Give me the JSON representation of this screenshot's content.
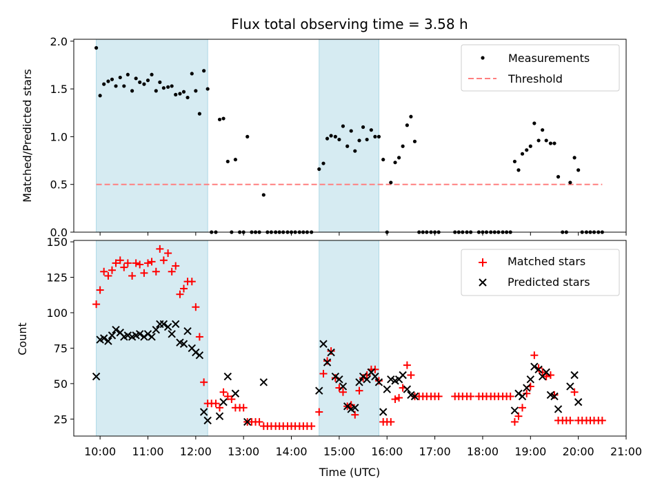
{
  "chart_data": {
    "title": "Flux total observing time = 3.58 h",
    "xlabel": "Time (UTC)",
    "x_unit": "hours (UTC)",
    "xlim": [
      9.45,
      21.0
    ],
    "x_ticks": [
      10,
      11,
      12,
      13,
      14,
      15,
      16,
      17,
      18,
      19,
      20,
      21
    ],
    "x_tick_labels": [
      "10:00",
      "11:00",
      "12:00",
      "13:00",
      "14:00",
      "15:00",
      "16:00",
      "17:00",
      "18:00",
      "19:00",
      "20:00",
      "21:00"
    ],
    "observing_windows": [
      [
        9.92,
        12.25
      ],
      [
        14.58,
        15.83
      ]
    ],
    "panels": [
      {
        "type": "scatter",
        "ylabel": "Matched/Predicted stars",
        "ylim": [
          0,
          2.02
        ],
        "y_ticks": [
          0.0,
          0.5,
          1.0,
          1.5,
          2.0
        ],
        "y_tick_labels": [
          "0.0",
          "0.5",
          "1.0",
          "1.5",
          "2.0"
        ],
        "legend": [
          "Measurements",
          "Threshold"
        ],
        "threshold": {
          "name": "Threshold",
          "y": 0.5,
          "x_range": [
            9.92,
            20.5
          ],
          "color": "#ff7f7f"
        },
        "series": [
          {
            "name": "Measurements",
            "color": "#000000",
            "x": [
              9.92,
              10.0,
              10.08,
              10.17,
              10.25,
              10.33,
              10.42,
              10.5,
              10.58,
              10.67,
              10.75,
              10.83,
              10.92,
              11.0,
              11.08,
              11.17,
              11.25,
              11.33,
              11.42,
              11.5,
              11.58,
              11.67,
              11.75,
              11.83,
              11.92,
              12.0,
              12.08,
              12.17,
              12.25,
              12.33,
              12.42,
              12.5,
              12.58,
              12.67,
              12.75,
              12.83,
              12.92,
              13.0,
              13.08,
              13.17,
              13.25,
              13.33,
              13.42,
              13.5,
              13.58,
              13.67,
              13.75,
              13.83,
              13.92,
              14.0,
              14.08,
              14.17,
              14.25,
              14.33,
              14.42,
              14.58,
              14.67,
              14.75,
              14.83,
              14.92,
              15.0,
              15.08,
              15.17,
              15.25,
              15.33,
              15.42,
              15.5,
              15.58,
              15.67,
              15.75,
              15.83,
              15.92,
              16.0,
              16.08,
              16.17,
              16.25,
              16.33,
              16.42,
              16.5,
              16.58,
              16.67,
              16.75,
              16.83,
              16.92,
              17.0,
              17.08,
              17.42,
              17.5,
              17.58,
              17.67,
              17.75,
              17.92,
              18.0,
              18.08,
              18.17,
              18.25,
              18.33,
              18.42,
              18.5,
              18.58,
              18.67,
              18.75,
              18.83,
              18.92,
              19.0,
              19.08,
              19.17,
              19.25,
              19.33,
              19.42,
              19.5,
              19.58,
              19.67,
              19.75,
              19.83,
              19.92,
              20.0,
              20.08,
              20.17,
              20.25,
              20.33,
              20.42,
              20.5
            ],
            "y": [
              1.93,
              1.43,
              1.55,
              1.58,
              1.6,
              1.53,
              1.62,
              1.53,
              1.65,
              1.48,
              1.61,
              1.57,
              1.55,
              1.59,
              1.65,
              1.48,
              1.57,
              1.51,
              1.52,
              1.53,
              1.44,
              1.45,
              1.47,
              1.41,
              1.66,
              1.48,
              1.24,
              1.69,
              1.5,
              0.0,
              0.0,
              1.18,
              1.19,
              0.74,
              0.0,
              0.76,
              0.0,
              0.0,
              1.0,
              0.0,
              0.0,
              0.0,
              0.39,
              0.0,
              0.0,
              0.0,
              0.0,
              0.0,
              0.0,
              0.0,
              0.0,
              0.0,
              0.0,
              0.0,
              0.0,
              0.66,
              0.72,
              0.98,
              1.01,
              1.0,
              0.97,
              1.11,
              0.9,
              1.06,
              0.85,
              0.96,
              1.1,
              0.97,
              1.07,
              1.0,
              1.0,
              0.76,
              0.0,
              0.52,
              0.73,
              0.78,
              0.9,
              1.12,
              1.21,
              0.95,
              0.0,
              0.0,
              0.0,
              0.0,
              0.0,
              0.0,
              0.0,
              0.0,
              0.0,
              0.0,
              0.0,
              0.0,
              0.0,
              0.0,
              0.0,
              0.0,
              0.0,
              0.0,
              0.0,
              0.0,
              0.74,
              0.65,
              0.82,
              0.86,
              0.9,
              1.14,
              0.96,
              1.07,
              0.96,
              0.93,
              0.93,
              0.58,
              0.0,
              0.0,
              0.52,
              0.78,
              0.65,
              0.0,
              0.0,
              0.0,
              0.0,
              0.0,
              0.0
            ]
          }
        ]
      },
      {
        "type": "scatter",
        "ylabel": "Count",
        "ylim": [
          13,
          151
        ],
        "y_ticks": [
          25,
          50,
          75,
          100,
          125,
          150
        ],
        "y_tick_labels": [
          "25",
          "50",
          "75",
          "100",
          "125",
          "150"
        ],
        "legend": [
          "Matched stars",
          "Predicted stars"
        ],
        "series": [
          {
            "name": "Matched stars",
            "marker": "+",
            "color": "#ff0000",
            "x": [
              9.92,
              10.0,
              10.08,
              10.17,
              10.25,
              10.33,
              10.42,
              10.5,
              10.58,
              10.67,
              10.75,
              10.83,
              10.92,
              11.0,
              11.08,
              11.17,
              11.25,
              11.33,
              11.42,
              11.5,
              11.58,
              11.67,
              11.75,
              11.83,
              11.92,
              12.0,
              12.08,
              12.17,
              12.25,
              12.33,
              12.42,
              12.5,
              12.58,
              12.67,
              12.75,
              12.83,
              12.92,
              13.0,
              13.08,
              13.17,
              13.25,
              13.33,
              13.42,
              13.5,
              13.58,
              13.67,
              13.75,
              13.83,
              13.92,
              14.0,
              14.08,
              14.17,
              14.25,
              14.33,
              14.42,
              14.58,
              14.67,
              14.75,
              14.83,
              14.92,
              15.0,
              15.08,
              15.17,
              15.25,
              15.33,
              15.42,
              15.5,
              15.58,
              15.67,
              15.75,
              15.83,
              15.92,
              16.0,
              16.08,
              16.17,
              16.25,
              16.33,
              16.42,
              16.5,
              16.58,
              16.67,
              16.75,
              16.83,
              16.92,
              17.0,
              17.08,
              17.42,
              17.5,
              17.58,
              17.67,
              17.75,
              17.92,
              18.0,
              18.08,
              18.17,
              18.25,
              18.33,
              18.42,
              18.5,
              18.58,
              18.67,
              18.75,
              18.83,
              18.92,
              19.0,
              19.08,
              19.17,
              19.25,
              19.33,
              19.42,
              19.5,
              19.58,
              19.67,
              19.75,
              19.83,
              19.92,
              20.0,
              20.08,
              20.17,
              20.25,
              20.33,
              20.42,
              20.5
            ],
            "y": [
              106,
              116,
              129,
              126,
              130,
              135,
              137,
              132,
              135,
              126,
              135,
              134,
              128,
              135,
              136,
              129,
              145,
              137,
              142,
              129,
              133,
              113,
              117,
              122,
              122,
              104,
              83,
              51,
              36,
              36,
              36,
              33,
              44,
              41,
              39,
              33,
              33,
              33,
              23,
              23,
              23,
              23,
              20,
              20,
              20,
              20,
              20,
              20,
              20,
              20,
              20,
              20,
              20,
              20,
              20,
              30,
              57,
              66,
              73,
              54,
              47,
              44,
              34,
              35,
              28,
              45,
              54,
              56,
              60,
              60,
              52,
              23,
              23,
              23,
              39,
              40,
              47,
              63,
              56,
              41,
              41,
              41,
              41,
              41,
              41,
              41,
              41,
              41,
              41,
              41,
              41,
              41,
              41,
              41,
              41,
              41,
              41,
              41,
              41,
              41,
              23,
              27,
              33,
              43,
              48,
              70,
              61,
              58,
              55,
              56,
              42,
              24,
              24,
              24,
              24,
              44,
              24,
              24,
              24,
              24,
              24,
              24,
              24
            ]
          },
          {
            "name": "Predicted stars",
            "marker": "x",
            "color": "#000000",
            "x": [
              9.92,
              10.0,
              10.08,
              10.17,
              10.25,
              10.33,
              10.42,
              10.5,
              10.58,
              10.67,
              10.75,
              10.83,
              10.92,
              11.0,
              11.08,
              11.17,
              11.25,
              11.33,
              11.42,
              11.5,
              11.58,
              11.67,
              11.75,
              11.83,
              11.92,
              12.0,
              12.08,
              12.17,
              12.25,
              12.5,
              12.58,
              12.67,
              12.83,
              13.08,
              13.42,
              14.58,
              14.67,
              14.75,
              14.83,
              14.92,
              15.0,
              15.08,
              15.17,
              15.25,
              15.33,
              15.42,
              15.5,
              15.58,
              15.67,
              15.75,
              15.83,
              15.92,
              16.0,
              16.08,
              16.17,
              16.25,
              16.33,
              16.42,
              16.5,
              16.58,
              18.67,
              18.75,
              18.83,
              18.92,
              19.0,
              19.08,
              19.17,
              19.25,
              19.33,
              19.42,
              19.5,
              19.58,
              19.83,
              19.92,
              20.0
            ],
            "y": [
              55,
              81,
              82,
              80,
              84,
              88,
              86,
              83,
              84,
              83,
              84,
              85,
              83,
              85,
              83,
              88,
              92,
              92,
              90,
              85,
              92,
              79,
              78,
              87,
              75,
              72,
              70,
              30,
              24,
              27,
              37,
              55,
              43,
              23,
              51,
              45,
              78,
              65,
              72,
              55,
              53,
              48,
              34,
              32,
              33,
              51,
              55,
              53,
              58,
              55,
              51,
              30,
              46,
              53,
              52,
              53,
              56,
              46,
              42,
              41,
              31,
              43,
              41,
              47,
              53,
              62,
              60,
              55,
              58,
              42,
              41,
              32,
              48,
              56,
              37
            ]
          }
        ]
      }
    ]
  }
}
